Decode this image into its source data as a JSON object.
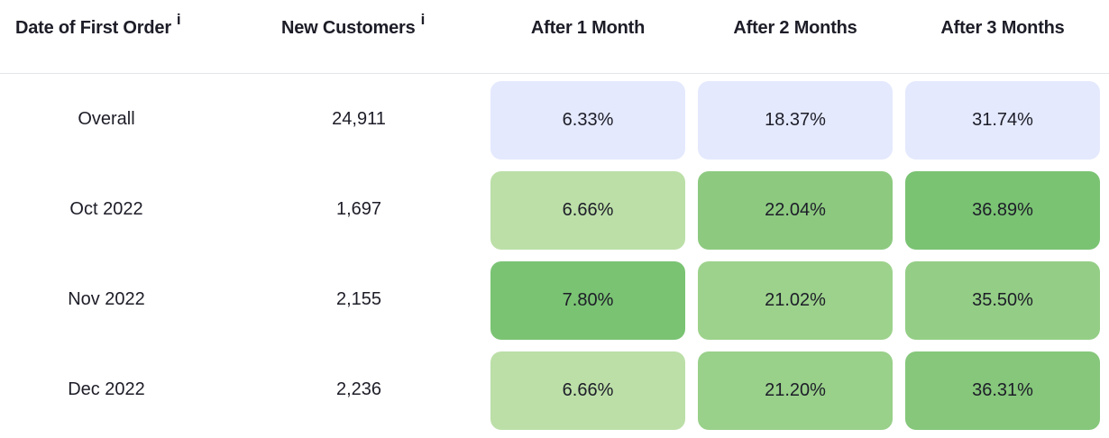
{
  "header": {
    "date_label": "Date of First Order",
    "customers_label": "New Customers",
    "info_glyph": "i",
    "m1_label": "After 1 Month",
    "m2_label": "After 2 Months",
    "m3_label": "After 3 Months"
  },
  "rows": [
    {
      "date": "Overall",
      "customers": "24,911",
      "m1": "6.33%",
      "m2": "18.37%",
      "m3": "31.74%"
    },
    {
      "date": "Oct 2022",
      "customers": "1,697",
      "m1": "6.66%",
      "m2": "22.04%",
      "m3": "36.89%"
    },
    {
      "date": "Nov 2022",
      "customers": "2,155",
      "m1": "7.80%",
      "m2": "21.02%",
      "m3": "35.50%"
    },
    {
      "date": "Dec 2022",
      "customers": "2,236",
      "m1": "6.66%",
      "m2": "21.20%",
      "m3": "36.31%"
    }
  ],
  "colors": {
    "overall": "#e4e9fd",
    "green_light": "#bcdfa8",
    "green_mid": "#9dd28c",
    "green_dark": "#7ac373"
  }
}
